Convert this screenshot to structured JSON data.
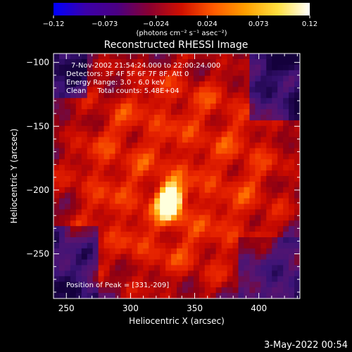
{
  "chart_data": {
    "type": "heatmap",
    "title": "Reconstructed RHESSI Image",
    "xlabel": "Heliocentric X (arcsec)",
    "ylabel": "Heliocentric Y (arcsec)",
    "xlim": [
      240,
      432
    ],
    "ylim": [
      -285,
      -93
    ],
    "x_ticks": [
      250,
      300,
      350,
      400
    ],
    "y_ticks": [
      -100,
      -150,
      -200,
      -250
    ],
    "colorbar": {
      "min": -0.12,
      "max": 0.12,
      "tick_labels": [
        "−0.12",
        "−0.073",
        "−0.024",
        "0.024",
        "0.073",
        "0.12"
      ],
      "unit_label": "(photons cm⁻² s⁻¹ asec⁻²)",
      "colormap_stops": [
        "#0000ff",
        "#3b00a8",
        "#4b0082",
        "#8a0030",
        "#d01000",
        "#ff5a00",
        "#ffa000",
        "#ffe040",
        "#ffffff"
      ]
    },
    "annotations": [
      "7-Nov-2002 21:54:24.000 to 22:00:24.000",
      "Detectors: 3F 4F 5F 6F 7F 8F, Att 0",
      "Energy Range: 3.0 - 6.0 keV",
      "Clean     Total counts: 5.48E+04",
      "Position of Peak = [331,-209]"
    ],
    "peak": {
      "x": 331,
      "y": -209,
      "value": 0.12
    },
    "timestamp": "3-May-2022 00:54"
  }
}
